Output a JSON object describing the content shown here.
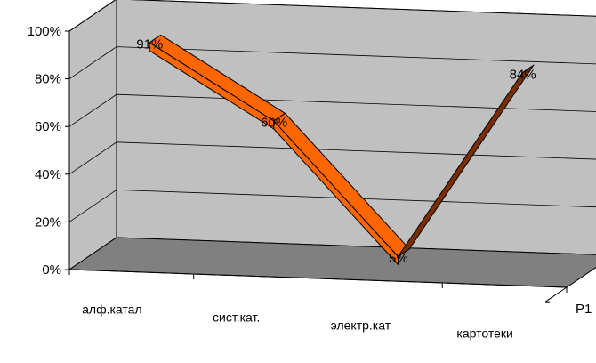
{
  "chart_data": {
    "type": "line",
    "style": "3d-ribbon",
    "categories": [
      "алф.катал",
      "сист.кат.",
      "электр.кат",
      "картотеки"
    ],
    "series": [
      {
        "name": "Р1",
        "values": [
          91,
          60,
          5,
          84
        ],
        "labels": [
          "91%",
          "60%",
          "5%",
          "84%"
        ]
      }
    ],
    "ylim": [
      0,
      100
    ],
    "yticks": [
      "0%",
      "20%",
      "40%",
      "60%",
      "80%",
      "100%"
    ],
    "ytick_values": [
      0,
      20,
      40,
      60,
      80,
      100
    ],
    "unit": "%",
    "grid": true,
    "colors": {
      "ribbon_front": "#ff6600",
      "ribbon_top": "#ff8a2e",
      "ribbon_dark": "#7a2e00",
      "back_wall": "#c0c0c0",
      "floor": "#808080",
      "grid": "#000000"
    }
  }
}
